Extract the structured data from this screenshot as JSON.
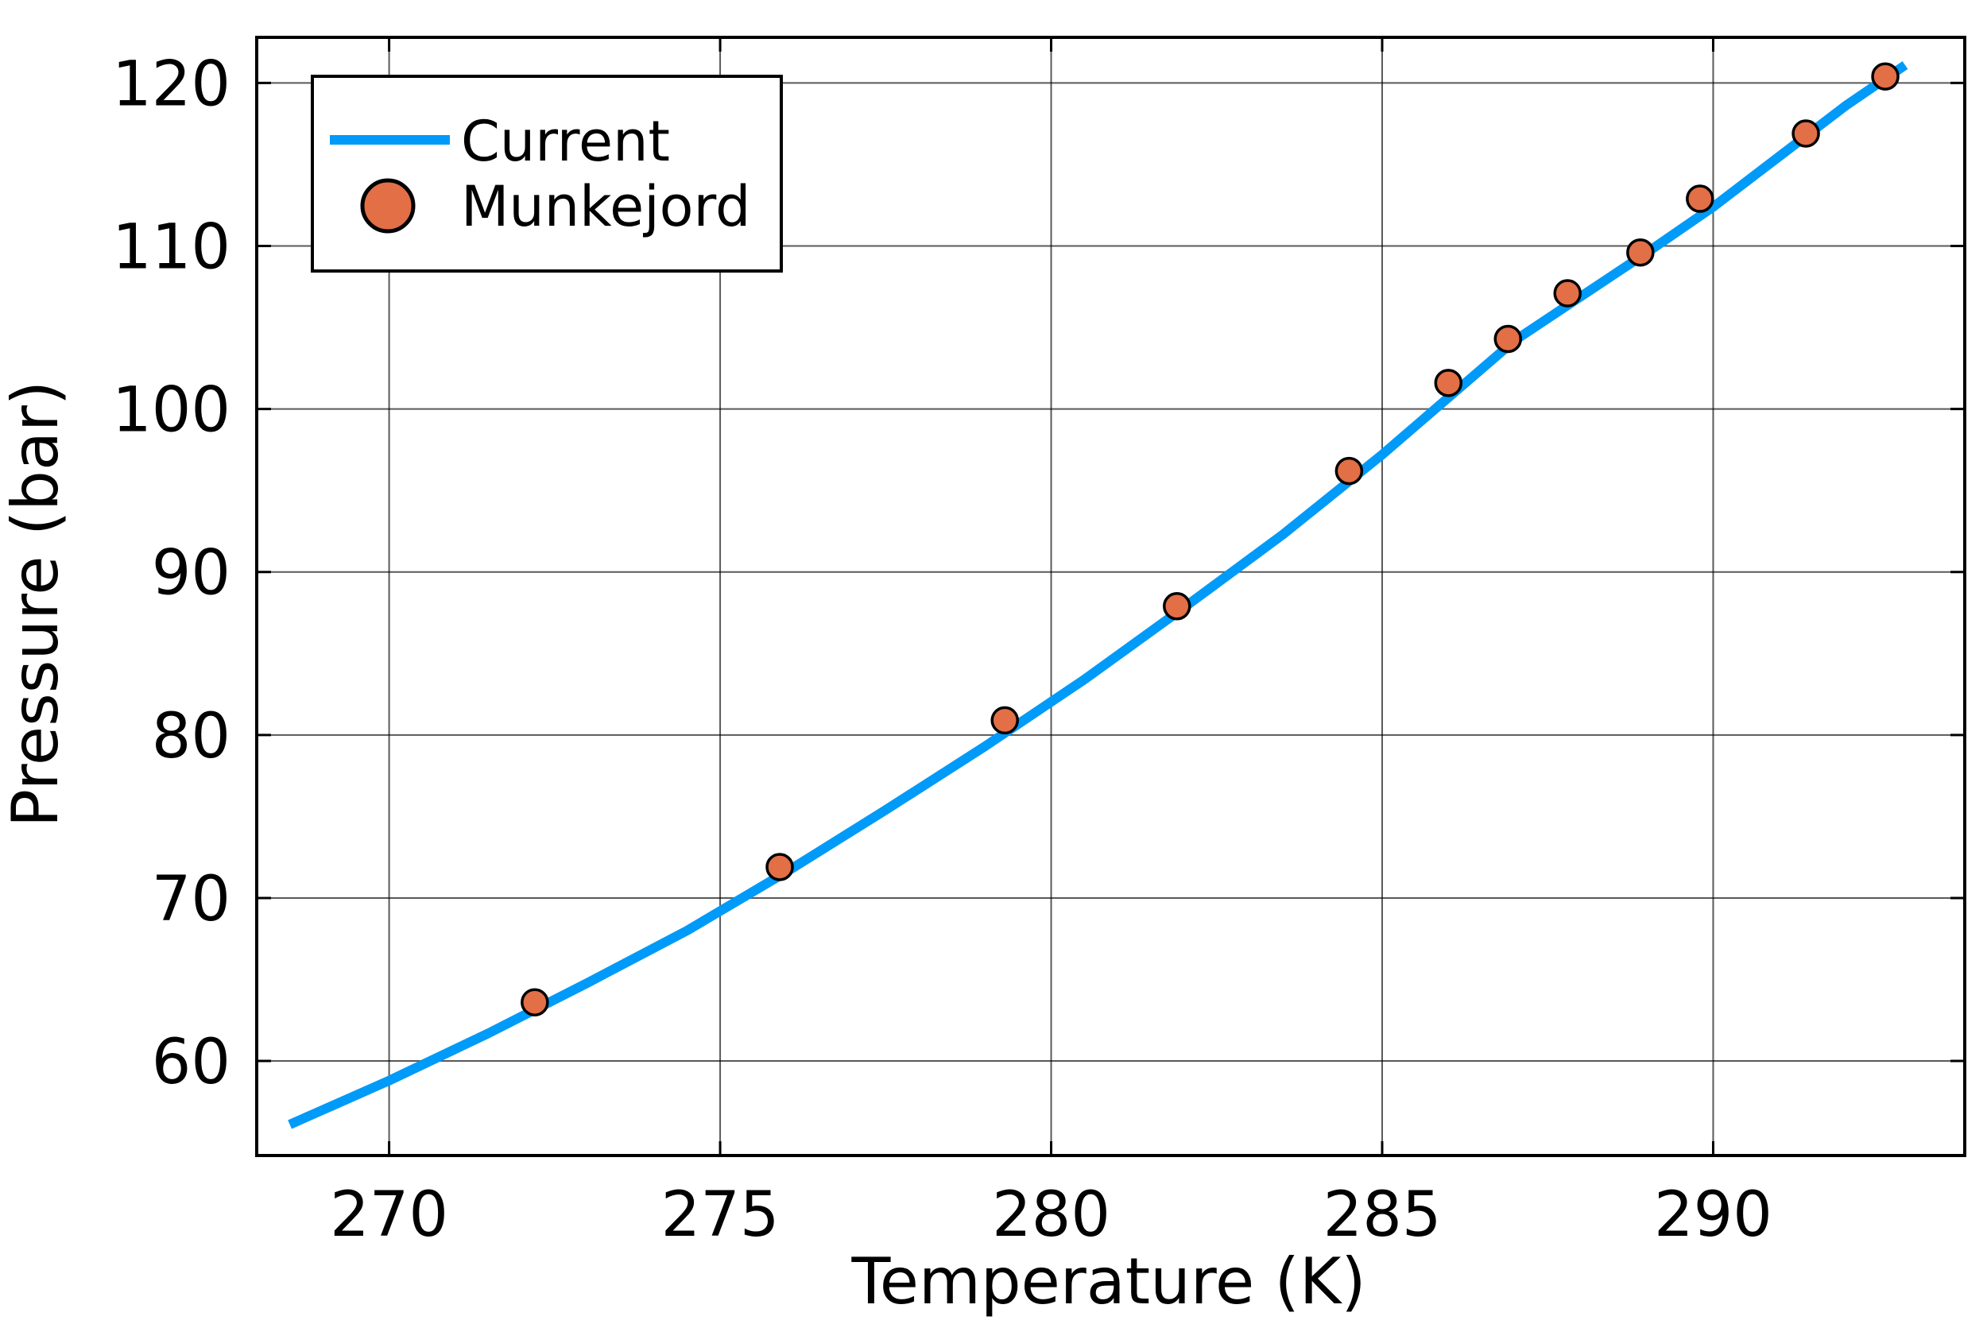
{
  "chart_data": {
    "type": "line",
    "xlabel": "Temperature (K)",
    "ylabel": "Pressure (bar)",
    "xlim": [
      268,
      293.8
    ],
    "ylim": [
      54.2,
      122.8
    ],
    "xticks": [
      270,
      275,
      280,
      285,
      290
    ],
    "yticks": [
      60,
      70,
      80,
      90,
      100,
      110,
      120
    ],
    "grid": true,
    "legend_position": "top-left",
    "series": [
      {
        "name": "Current",
        "kind": "line",
        "color": "#009af9",
        "x": [
          268.5,
          270.0,
          271.5,
          273.0,
          274.5,
          276.0,
          277.5,
          279.0,
          280.5,
          282.0,
          283.5,
          285.0,
          286.0,
          287.0,
          288.0,
          289.0,
          290.0,
          291.0,
          292.0,
          292.9
        ],
        "y": [
          56.1,
          58.8,
          61.7,
          64.8,
          68.0,
          71.6,
          75.4,
          79.3,
          83.4,
          87.8,
          92.3,
          97.2,
          100.7,
          104.2,
          106.9,
          109.6,
          112.4,
          115.5,
          118.6,
          121.1
        ]
      },
      {
        "name": "Munkejord",
        "kind": "scatter",
        "color": "#e26f46",
        "x": [
          272.2,
          275.9,
          279.3,
          281.9,
          284.5,
          286.0,
          286.9,
          287.8,
          288.9,
          289.8,
          291.4,
          292.6
        ],
        "y": [
          63.6,
          71.9,
          80.9,
          87.9,
          96.2,
          101.6,
          104.3,
          107.1,
          109.6,
          112.9,
          116.9,
          120.4
        ]
      }
    ]
  }
}
